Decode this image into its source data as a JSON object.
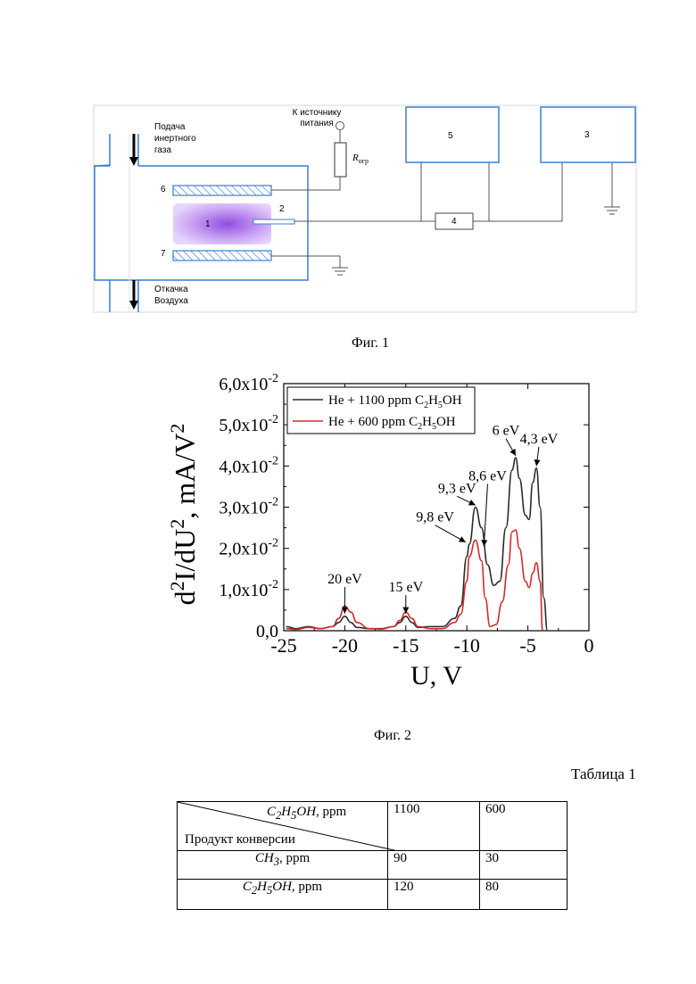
{
  "figure1": {
    "caption": "Фиг. 1",
    "gas_in": "Подача\nинертного\nгаза",
    "gas_out": "Откачка\nВоздуха",
    "power_label": "К источнику\nпитания",
    "resistor_label": "R",
    "resistor_subscript": "огр",
    "labels": {
      "n1": "1",
      "n2": "2",
      "n3": "3",
      "n4": "4",
      "n5": "5",
      "n6": "6",
      "n7": "7"
    },
    "colors": {
      "frame": "#3b7fd1",
      "plasma": "#b57ff0"
    }
  },
  "figure2": {
    "caption": "Фиг. 2",
    "chart_data": {
      "type": "line",
      "xlabel": "U, V",
      "ylabel": "d2I/dU2, mA/V2",
      "xlim": [
        -25,
        0
      ],
      "ylim": [
        0,
        0.06
      ],
      "xticks": [
        "-25",
        "-20",
        "-15",
        "-10",
        "-5",
        "0"
      ],
      "yticks": [
        "0,0",
        "1,0x10-2",
        "2,0x10-2",
        "3,0x10-2",
        "4,0x10-2",
        "5,0x10-2",
        "6,0x10-2"
      ],
      "legend": {
        "placement": "top-left",
        "entries": [
          "He + 1100 ppm C2H5OH",
          "He + 600 ppm C2H5OH"
        ]
      },
      "series": [
        {
          "name": "He + 1100 ppm C2H5OH",
          "color": "#2b2b2b",
          "x": [
            -24.8,
            -24,
            -23,
            -22,
            -21,
            -20.5,
            -20,
            -19.5,
            -19,
            -18,
            -17,
            -16,
            -15.5,
            -15,
            -14.5,
            -14,
            -13,
            -12,
            -11,
            -10.5,
            -10,
            -9.8,
            -9.3,
            -8.8,
            -8.3,
            -7.8,
            -7.3,
            -6.8,
            -6.3,
            -6,
            -5.7,
            -5.2,
            -4.9,
            -4.6,
            -4.3,
            -4.0,
            -3.7,
            -3.4
          ],
          "y": [
            0.001,
            0.0005,
            0.001,
            0.0005,
            0.001,
            0.002,
            0.0035,
            0.002,
            0.0008,
            0.0005,
            0.0005,
            0.001,
            0.002,
            0.0035,
            0.002,
            0.0008,
            0.001,
            0.001,
            0.003,
            0.006,
            0.018,
            0.021,
            0.03,
            0.025,
            0.016,
            0.011,
            0.012,
            0.025,
            0.039,
            0.042,
            0.037,
            0.028,
            0.027,
            0.036,
            0.0395,
            0.03,
            0.008,
            0.0
          ]
        },
        {
          "name": "He + 600 ppm C2H5OH",
          "color": "#d42a2a",
          "x": [
            -24.8,
            -24,
            -23,
            -22,
            -21,
            -20.5,
            -20,
            -19.5,
            -19,
            -18,
            -17,
            -16,
            -15.5,
            -15,
            -14.5,
            -14,
            -13,
            -12,
            -11,
            -10.5,
            -10,
            -9.8,
            -9.3,
            -8.8,
            -8.5,
            -8.1,
            -7.6,
            -7.1,
            -6.6,
            -6.3,
            -6,
            -5.7,
            -5.2,
            -4.9,
            -4.6,
            -4.3,
            -4.0,
            -3.8
          ],
          "y": [
            0.0005,
            0.0003,
            0.0008,
            0.0005,
            0.001,
            0.003,
            0.006,
            0.0045,
            0.002,
            0.0005,
            0.0004,
            0.001,
            0.0025,
            0.0045,
            0.003,
            0.001,
            0.0005,
            0.0005,
            0.002,
            0.004,
            0.012,
            0.018,
            0.022,
            0.017,
            0.008,
            0.001,
            0.0015,
            0.007,
            0.016,
            0.024,
            0.0245,
            0.02,
            0.012,
            0.0105,
            0.014,
            0.0165,
            0.012,
            0.0
          ]
        }
      ],
      "annotations": [
        {
          "text": "20 eV",
          "x": -20,
          "y": 0.0035
        },
        {
          "text": "15 eV",
          "x": -15,
          "y": 0.0035
        },
        {
          "text": "9,8 eV",
          "x": -9.8,
          "y": 0.021
        },
        {
          "text": "9,3 eV",
          "x": -9.3,
          "y": 0.03
        },
        {
          "text": "8,6 eV",
          "x": -8.6,
          "y": 0.02
        },
        {
          "text": "6 eV",
          "x": -6,
          "y": 0.042
        },
        {
          "text": "4,3 eV",
          "x": -4.3,
          "y": 0.0395
        }
      ]
    }
  },
  "table1": {
    "title": "Таблица 1",
    "header_top": "C2H5OH, ppm",
    "header_bottom": "Продукт конверсии",
    "columns": [
      "1100",
      "600"
    ],
    "rows": [
      {
        "label": "CH3, ppm",
        "values": [
          "90",
          "30"
        ]
      },
      {
        "label": "C2H5OH, ppm",
        "values": [
          "120",
          "80"
        ]
      }
    ]
  }
}
